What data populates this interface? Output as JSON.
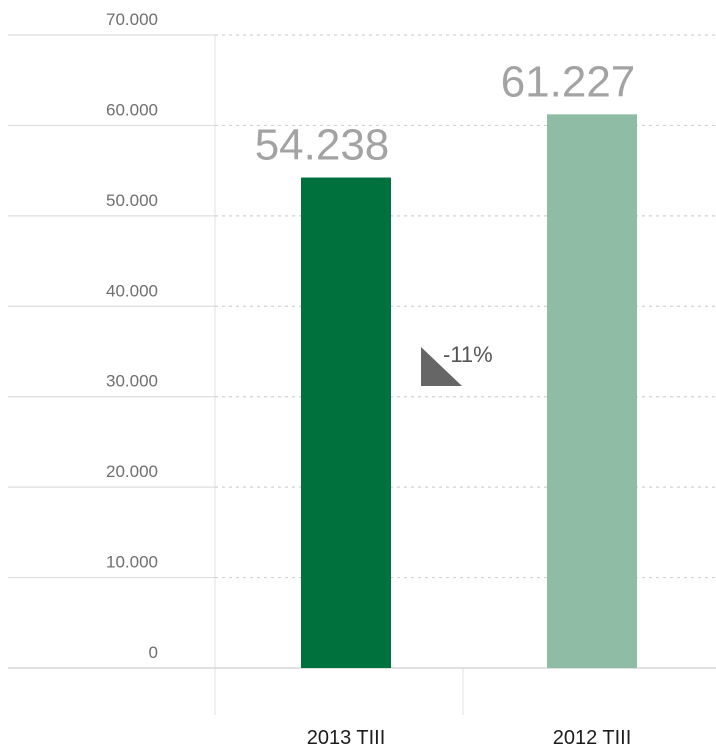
{
  "chart_data": {
    "type": "bar",
    "categories": [
      "2013 TIII",
      "2012 TIII"
    ],
    "values": [
      54238,
      61227
    ],
    "value_labels": [
      "54.238",
      "61.227"
    ],
    "ylim": [
      0,
      70000
    ],
    "yticks": [
      0,
      10000,
      20000,
      30000,
      40000,
      50000,
      60000,
      70000
    ],
    "ytick_labels": [
      "0",
      "10.000",
      "20.000",
      "30.000",
      "40.000",
      "50.000",
      "60.000",
      "70.000"
    ],
    "colors": [
      "#00703c",
      "#8fbca4"
    ],
    "grid": true,
    "title": "",
    "xlabel": "",
    "ylabel": "",
    "annotation": {
      "text": "-11%",
      "icon": "down-triangle-icon",
      "color": "#666666"
    }
  }
}
